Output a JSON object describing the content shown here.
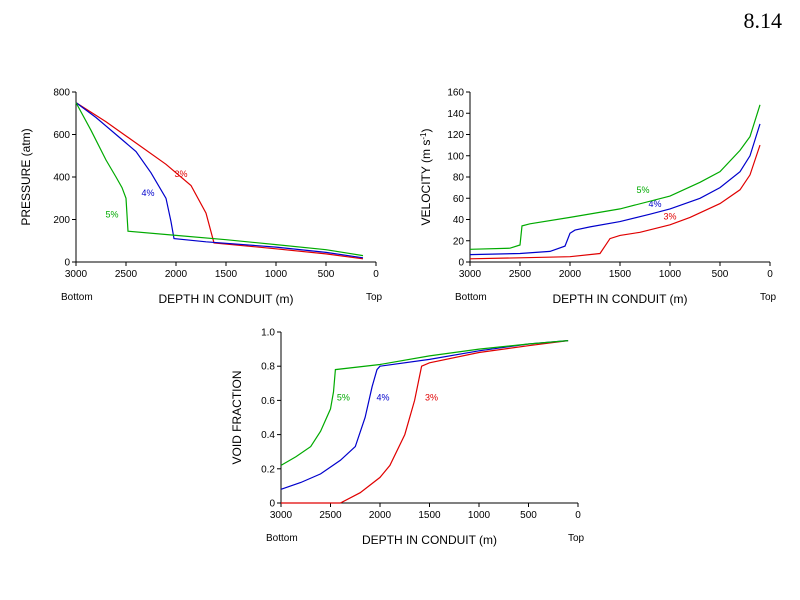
{
  "page_number": "8.14",
  "colors": {
    "three": "#e00000",
    "four": "#0000cc",
    "five": "#00aa00"
  },
  "chart_data": [
    {
      "type": "line",
      "ylabel": "PRESSURE (atm)",
      "xlabel": "DEPTH IN CONDUIT (m)",
      "xlim": [
        3000,
        0
      ],
      "ylim": [
        0,
        800
      ],
      "xticks": [
        3000,
        2500,
        2000,
        1500,
        1000,
        500,
        0
      ],
      "yticks": [
        0,
        200,
        400,
        600,
        800
      ],
      "end_labels": {
        "left": "Bottom",
        "right": "Top"
      },
      "series": [
        {
          "name": "3%",
          "color": "#e00000",
          "x": [
            3000,
            2700,
            2400,
            2100,
            1850,
            1700,
            1620,
            1000,
            500,
            130
          ],
          "y": [
            750,
            660,
            560,
            460,
            360,
            230,
            90,
            62,
            38,
            15
          ],
          "label_pos": [
            1950,
            400
          ]
        },
        {
          "name": "4%",
          "color": "#0000cc",
          "x": [
            3000,
            2800,
            2600,
            2400,
            2250,
            2100,
            2050,
            2020,
            1700,
            1000,
            500,
            130
          ],
          "y": [
            750,
            680,
            600,
            520,
            420,
            300,
            190,
            110,
            95,
            70,
            45,
            20
          ],
          "label_pos": [
            2280,
            310
          ]
        },
        {
          "name": "5%",
          "color": "#00aa00",
          "x": [
            3000,
            2850,
            2700,
            2600,
            2540,
            2500,
            2480,
            2000,
            1500,
            1000,
            500,
            130
          ],
          "y": [
            750,
            620,
            480,
            400,
            350,
            300,
            145,
            125,
            105,
            82,
            58,
            30
          ],
          "label_pos": [
            2640,
            210
          ]
        }
      ]
    },
    {
      "type": "line",
      "ylabel": "VELOCITY (m s",
      "ylabel_sup": "-1",
      "ylabel_end": ")",
      "xlabel": "DEPTH IN CONDUIT (m)",
      "xlim": [
        3000,
        0
      ],
      "ylim": [
        0,
        160
      ],
      "xticks": [
        3000,
        2500,
        2000,
        1500,
        1000,
        500,
        0
      ],
      "yticks": [
        0,
        20,
        40,
        60,
        80,
        100,
        120,
        140,
        160
      ],
      "end_labels": {
        "left": "Bottom",
        "right": "Top"
      },
      "series": [
        {
          "name": "3%",
          "color": "#e00000",
          "x": [
            3000,
            2500,
            2000,
            1700,
            1650,
            1600,
            1500,
            1300,
            1000,
            800,
            500,
            300,
            200,
            100
          ],
          "y": [
            3,
            4,
            5,
            8,
            15,
            22,
            25,
            28,
            35,
            42,
            55,
            68,
            82,
            110
          ],
          "label_pos": [
            1000,
            40
          ]
        },
        {
          "name": "4%",
          "color": "#0000cc",
          "x": [
            3000,
            2500,
            2200,
            2050,
            2000,
            1950,
            1800,
            1500,
            1200,
            1000,
            700,
            500,
            300,
            200,
            100
          ],
          "y": [
            7,
            8,
            10,
            15,
            27,
            30,
            33,
            38,
            45,
            50,
            60,
            70,
            85,
            100,
            130
          ],
          "label_pos": [
            1150,
            52
          ]
        },
        {
          "name": "5%",
          "color": "#00aa00",
          "x": [
            3000,
            2600,
            2500,
            2480,
            2400,
            2000,
            1500,
            1000,
            700,
            500,
            300,
            200,
            100
          ],
          "y": [
            12,
            13,
            16,
            34,
            36,
            42,
            50,
            62,
            75,
            85,
            105,
            118,
            148
          ],
          "label_pos": [
            1270,
            65
          ]
        }
      ]
    },
    {
      "type": "line",
      "ylabel": "VOID FRACTION",
      "xlabel": "DEPTH IN CONDUIT (m)",
      "xlim": [
        3000,
        0
      ],
      "ylim": [
        0,
        1.0
      ],
      "xticks": [
        3000,
        2500,
        2000,
        1500,
        1000,
        500,
        0
      ],
      "yticks": [
        0,
        0.2,
        0.4,
        0.6,
        0.8,
        1.0
      ],
      "ytick_labels": [
        "0",
        "0.2",
        "0.4",
        "0.6",
        "0.8",
        "1.0"
      ],
      "end_labels": {
        "left": "Bottom",
        "right": "Top"
      },
      "series": [
        {
          "name": "3%",
          "color": "#e00000",
          "x": [
            3000,
            2400,
            2200,
            2000,
            1900,
            1750,
            1650,
            1580,
            1500,
            1000,
            500,
            100
          ],
          "y": [
            0,
            0,
            0.06,
            0.15,
            0.22,
            0.4,
            0.6,
            0.8,
            0.82,
            0.88,
            0.92,
            0.95
          ],
          "label_pos": [
            1480,
            0.6
          ]
        },
        {
          "name": "4%",
          "color": "#0000cc",
          "x": [
            3000,
            2800,
            2600,
            2400,
            2250,
            2150,
            2080,
            2030,
            2000,
            1500,
            1000,
            500,
            100
          ],
          "y": [
            0.08,
            0.12,
            0.17,
            0.25,
            0.33,
            0.5,
            0.68,
            0.78,
            0.8,
            0.84,
            0.89,
            0.93,
            0.95
          ],
          "label_pos": [
            1970,
            0.6
          ]
        },
        {
          "name": "5%",
          "color": "#00aa00",
          "x": [
            3000,
            2850,
            2700,
            2600,
            2500,
            2470,
            2450,
            2000,
            1500,
            1000,
            500,
            100
          ],
          "y": [
            0.22,
            0.27,
            0.33,
            0.42,
            0.55,
            0.65,
            0.78,
            0.81,
            0.86,
            0.9,
            0.93,
            0.95
          ],
          "label_pos": [
            2370,
            0.6
          ]
        }
      ]
    }
  ]
}
